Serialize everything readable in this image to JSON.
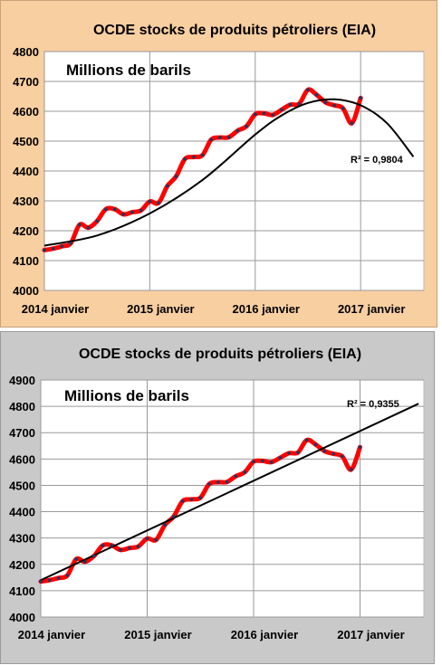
{
  "chart_data": [
    {
      "type": "line",
      "title": "OCDE stocks de produits pétroliers (EIA)",
      "annotation": "Millions de barils",
      "trendline_label": "R² = 0,9804",
      "trendline_type": "polynomial",
      "ylim": [
        4000,
        4800
      ],
      "yticks": [
        "4000",
        "4100",
        "4200",
        "4300",
        "4400",
        "4500",
        "4600",
        "4700",
        "4800"
      ],
      "xlim": [
        2014.0,
        2017.6
      ],
      "xticks": [
        {
          "label": "2014 janvier",
          "x": 2014.0
        },
        {
          "label": "2015 janvier",
          "x": 2015.0
        },
        {
          "label": "2016 janvier",
          "x": 2016.0
        },
        {
          "label": "2017 janvier",
          "x": 2017.0
        }
      ],
      "grid": true,
      "x": [
        2014.0,
        2014.083,
        2014.167,
        2014.25,
        2014.333,
        2014.417,
        2014.5,
        2014.583,
        2014.667,
        2014.75,
        2014.833,
        2014.917,
        2015.0,
        2015.083,
        2015.167,
        2015.25,
        2015.333,
        2015.417,
        2015.5,
        2015.583,
        2015.667,
        2015.75,
        2015.833,
        2015.917,
        2016.0,
        2016.083,
        2016.167,
        2016.25,
        2016.333,
        2016.417,
        2016.5,
        2016.583,
        2016.667,
        2016.75,
        2016.833,
        2016.917,
        2017.0
      ],
      "series": [
        {
          "values": [
            4135,
            4140,
            4148,
            4158,
            4220,
            4210,
            4232,
            4272,
            4272,
            4255,
            4262,
            4268,
            4298,
            4293,
            4350,
            4382,
            4440,
            4447,
            4453,
            4505,
            4512,
            4513,
            4535,
            4550,
            4590,
            4593,
            4588,
            4605,
            4622,
            4625,
            4672,
            4655,
            4630,
            4620,
            4610,
            4560,
            4645
          ]
        }
      ],
      "trend": {
        "x": [
          2014.0,
          2014.5,
          2015.0,
          2015.5,
          2016.0,
          2016.25,
          2016.5,
          2016.75,
          2017.0,
          2017.25,
          2017.5
        ],
        "values": [
          4150,
          4184,
          4258,
          4370,
          4522,
          4586,
          4628,
          4640,
          4620,
          4560,
          4448
        ]
      }
    },
    {
      "type": "line",
      "title": "OCDE stocks de produits pétroliers (EIA)",
      "annotation": "Millions de barils",
      "trendline_label": "R² = 0,9355",
      "trendline_type": "linear",
      "ylim": [
        4000,
        4900
      ],
      "yticks": [
        "4000",
        "4100",
        "4200",
        "4300",
        "4400",
        "4500",
        "4600",
        "4700",
        "4800",
        "4900"
      ],
      "xlim": [
        2014.0,
        2017.6
      ],
      "xticks": [
        {
          "label": "2014 janvier",
          "x": 2014.0
        },
        {
          "label": "2015 janvier",
          "x": 2015.0
        },
        {
          "label": "2016 janvier",
          "x": 2016.0
        },
        {
          "label": "2017 janvier",
          "x": 2017.0
        }
      ],
      "grid": true,
      "x": [
        2014.0,
        2014.083,
        2014.167,
        2014.25,
        2014.333,
        2014.417,
        2014.5,
        2014.583,
        2014.667,
        2014.75,
        2014.833,
        2014.917,
        2015.0,
        2015.083,
        2015.167,
        2015.25,
        2015.333,
        2015.417,
        2015.5,
        2015.583,
        2015.667,
        2015.75,
        2015.833,
        2015.917,
        2016.0,
        2016.083,
        2016.167,
        2016.25,
        2016.333,
        2016.417,
        2016.5,
        2016.583,
        2016.667,
        2016.75,
        2016.833,
        2016.917,
        2017.0
      ],
      "series": [
        {
          "values": [
            4135,
            4140,
            4148,
            4158,
            4220,
            4210,
            4232,
            4272,
            4272,
            4255,
            4262,
            4268,
            4298,
            4293,
            4350,
            4382,
            4440,
            4447,
            4453,
            4505,
            4512,
            4513,
            4535,
            4550,
            4590,
            4593,
            4588,
            4605,
            4622,
            4625,
            4672,
            4655,
            4630,
            4620,
            4610,
            4560,
            4645
          ]
        }
      ],
      "trend": {
        "x": [
          2014.0,
          2017.55
        ],
        "values": [
          4140,
          4810
        ]
      }
    }
  ],
  "colors": {
    "series": "#ff0000",
    "markers": "#1f3864",
    "trend": "#000000"
  }
}
